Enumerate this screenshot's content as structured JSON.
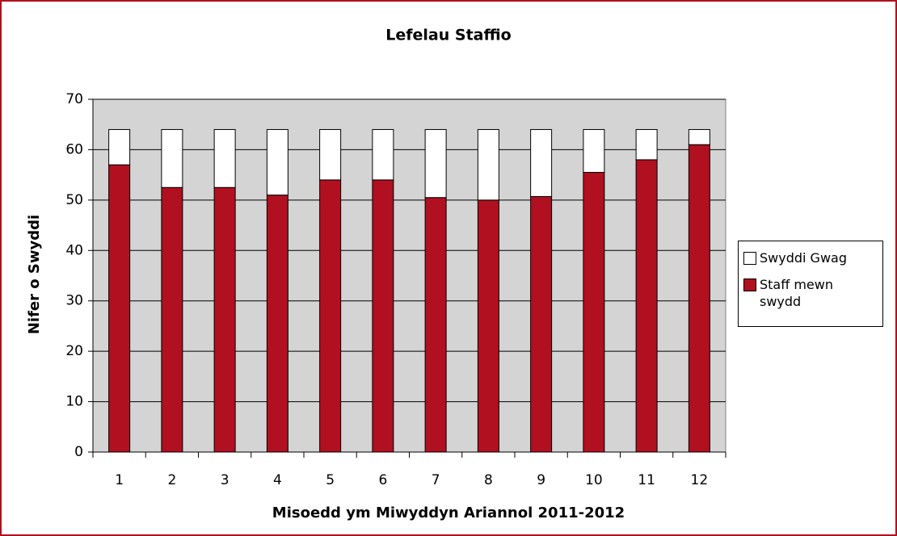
{
  "chart_data": {
    "type": "stacked_bar",
    "title": "Lefelau Staffio",
    "x_label": "Misoedd ym Miwyddyn Ariannol 2011-2012",
    "y_label": "Nifer o Swyddi",
    "categories": [
      "1",
      "2",
      "3",
      "4",
      "5",
      "6",
      "7",
      "8",
      "9",
      "10",
      "11",
      "12"
    ],
    "series": [
      {
        "name": "Staff mewn swydd",
        "color": "#b01020",
        "values": [
          57,
          52.5,
          52.5,
          51,
          54,
          54,
          50.5,
          50,
          50.7,
          55.5,
          58,
          61
        ]
      },
      {
        "name": "Swyddi Gwag",
        "color": "#ffffff",
        "values": [
          7,
          11.5,
          11.5,
          13,
          10,
          10,
          13.5,
          14,
          13.3,
          8.5,
          6,
          3
        ]
      }
    ],
    "ylim": [
      0,
      70
    ],
    "yticks": [
      0,
      10,
      20,
      30,
      40,
      50,
      60,
      70
    ],
    "grid": true,
    "legend": "right"
  }
}
